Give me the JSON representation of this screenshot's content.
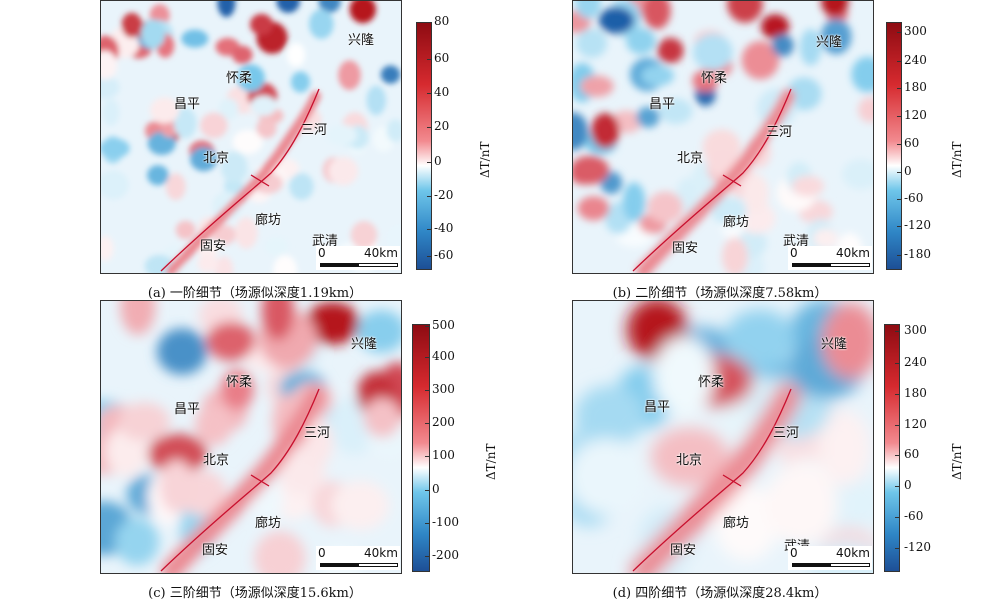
{
  "panels": [
    {
      "id": "a",
      "caption": "(a) 一阶细节（场源似深度1.19km）",
      "colorbar_ticks": [
        "80",
        "60",
        "40",
        "20",
        "0",
        "-20",
        "-40",
        "-60"
      ],
      "unit": "ΔT/nT",
      "places": [
        "兴隆",
        "怀柔",
        "昌平",
        "三河",
        "北京",
        "廊坊",
        "固安",
        "武清"
      ],
      "scale": {
        "zero": "0",
        "length": "40km"
      }
    },
    {
      "id": "b",
      "caption": "(b) 二阶细节（场源似深度7.58km）",
      "colorbar_ticks": [
        "300",
        "240",
        "180",
        "120",
        "60",
        "0",
        "-60",
        "-120",
        "-180"
      ],
      "unit": "ΔT/nT",
      "places": [
        "兴隆",
        "怀柔",
        "昌平",
        "三河",
        "北京",
        "廊坊",
        "固安",
        "武清"
      ],
      "scale": {
        "zero": "0",
        "length": "40km"
      }
    },
    {
      "id": "c",
      "caption": "(c) 三阶细节（场源似深度15.6km）",
      "colorbar_ticks": [
        "500",
        "400",
        "300",
        "200",
        "100",
        "0",
        "-100",
        "-200"
      ],
      "unit": "ΔT/nT",
      "places": [
        "兴隆",
        "怀柔",
        "昌平",
        "三河",
        "北京",
        "廊坊",
        "固安"
      ],
      "scale": {
        "zero": "0",
        "length": "40km"
      }
    },
    {
      "id": "d",
      "caption": "(d) 四阶细节（场源似深度28.4km）",
      "colorbar_ticks": [
        "300",
        "240",
        "180",
        "120",
        "60",
        "0",
        "-60",
        "-120"
      ],
      "unit": "ΔT/nT",
      "places": [
        "兴隆",
        "怀柔",
        "昌平",
        "三河",
        "北京",
        "廊坊",
        "固安",
        "武清"
      ],
      "scale": {
        "zero": "0",
        "length": "40km"
      }
    }
  ],
  "chart_data": [
    {
      "type": "heatmap",
      "title": "(a) 一阶细节（场源似深度1.19km）",
      "colorbar_label": "ΔT/nT",
      "colorbar_range": [
        -70,
        85
      ],
      "colorbar_ticks": [
        80,
        60,
        40,
        20,
        0,
        -20,
        -40,
        -60
      ]
    },
    {
      "type": "heatmap",
      "title": "(b) 二阶细节（场源似深度7.58km）",
      "colorbar_label": "ΔT/nT",
      "colorbar_range": [
        -210,
        320
      ],
      "colorbar_ticks": [
        300,
        240,
        180,
        120,
        60,
        0,
        -60,
        -120,
        -180
      ]
    },
    {
      "type": "heatmap",
      "title": "(c) 三阶细节（场源似深度15.6km）",
      "colorbar_label": "ΔT/nT",
      "colorbar_range": [
        -250,
        500
      ],
      "colorbar_ticks": [
        500,
        400,
        300,
        200,
        100,
        0,
        -100,
        -200
      ]
    },
    {
      "type": "heatmap",
      "title": "(d) 四阶细节（场源似深度28.4km）",
      "colorbar_label": "ΔT/nT",
      "colorbar_range": [
        -170,
        320
      ],
      "colorbar_ticks": [
        300,
        240,
        180,
        120,
        60,
        0,
        -60,
        -120
      ]
    }
  ],
  "colors": {
    "positive": "#b5121b",
    "zero": "#ffffff",
    "negative": "#1f5fa8",
    "fault": "#c8102e"
  }
}
